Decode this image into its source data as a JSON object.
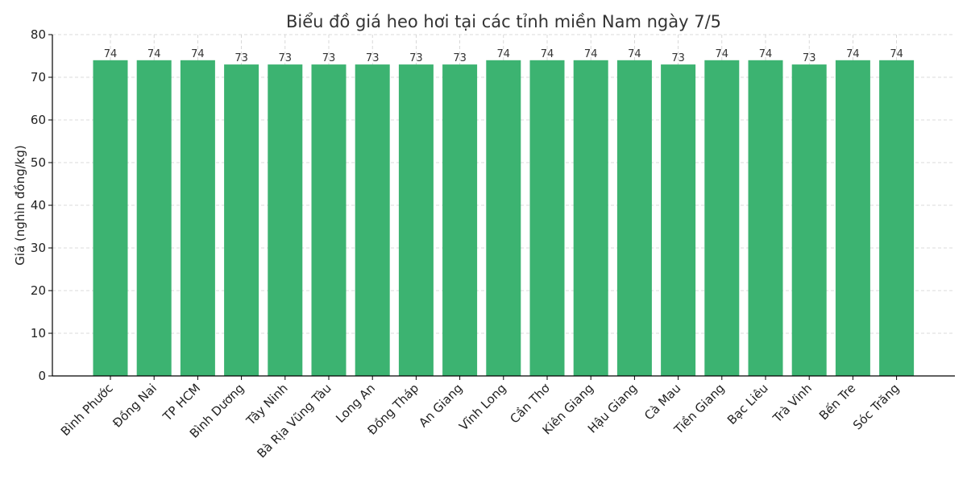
{
  "chart_data": {
    "type": "bar",
    "title": "Biểu đồ giá heo hơi tại các tỉnh miền Nam ngày 7/5",
    "xlabel": "",
    "ylabel": "Giá (nghìn đồng/kg)",
    "ylim": [
      0,
      80
    ],
    "yticks": [
      0,
      10,
      20,
      30,
      40,
      50,
      60,
      70,
      80
    ],
    "grid": true,
    "categories": [
      "Bình Phước",
      "Đồng Nai",
      "TP HCM",
      "Bình Dương",
      "Tây Ninh",
      "Bà Rịa  Vũng Tàu",
      "Long An",
      "Đồng Tháp",
      "An Giang",
      "Vĩnh Long",
      "Cần Thơ",
      "Kiên Giang",
      "Hậu Giang",
      "Cà Mau",
      "Tiền Giang",
      "Bạc Liêu",
      "Trà Vinh",
      "Bến Tre",
      "Sóc Trăng"
    ],
    "values": [
      74,
      74,
      74,
      73,
      73,
      73,
      73,
      73,
      73,
      74,
      74,
      74,
      74,
      73,
      74,
      74,
      73,
      74,
      74
    ],
    "bar_color": "#3cb371"
  }
}
